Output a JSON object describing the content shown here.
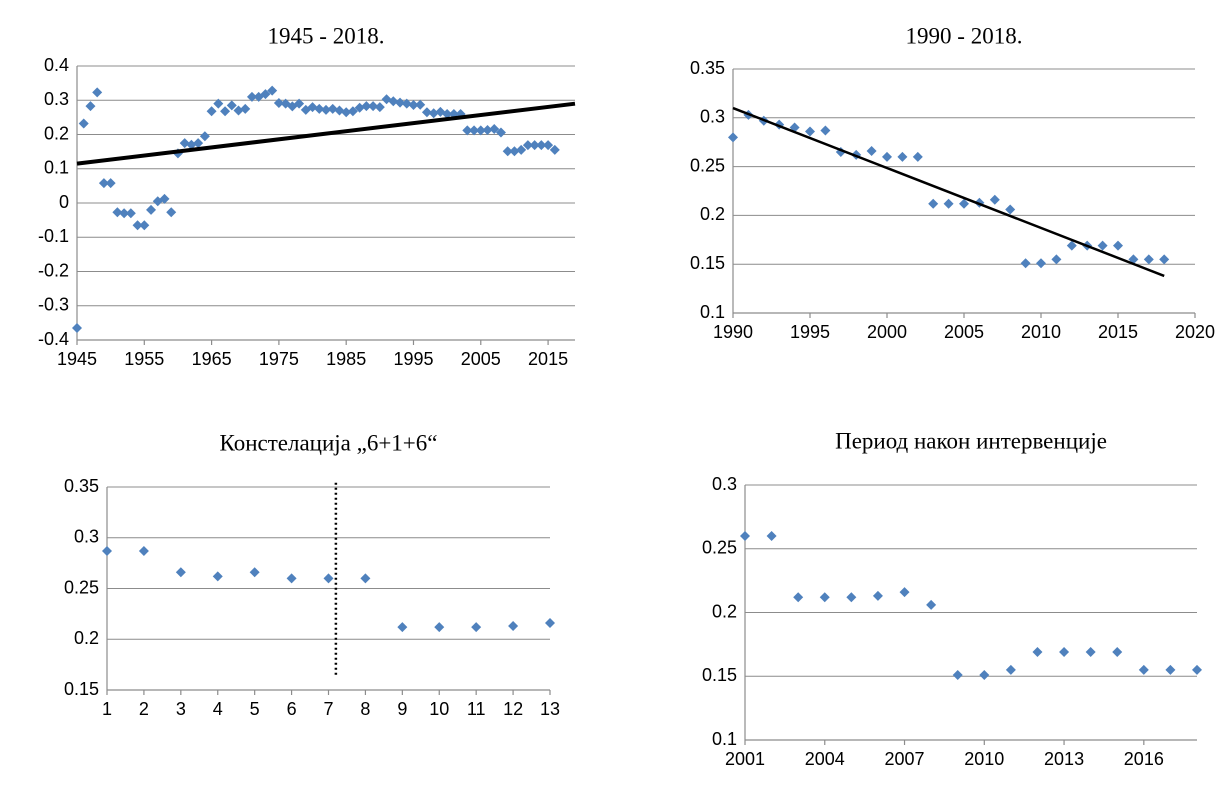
{
  "chart_data": [
    {
      "type": "scatter",
      "title": "1945 - 2018.",
      "x": [
        1945,
        1946,
        1947,
        1948,
        1949,
        1950,
        1951,
        1952,
        1953,
        1954,
        1955,
        1956,
        1957,
        1958,
        1959,
        1960,
        1961,
        1962,
        1963,
        1964,
        1965,
        1966,
        1967,
        1968,
        1969,
        1970,
        1971,
        1972,
        1973,
        1974,
        1975,
        1976,
        1977,
        1978,
        1979,
        1980,
        1981,
        1982,
        1983,
        1984,
        1985,
        1986,
        1987,
        1988,
        1989,
        1990,
        1991,
        1992,
        1993,
        1994,
        1995,
        1996,
        1997,
        1998,
        1999,
        2000,
        2001,
        2002,
        2003,
        2004,
        2005,
        2006,
        2007,
        2008,
        2009,
        2010,
        2011,
        2012,
        2013,
        2014,
        2015,
        2016
      ],
      "values": [
        -0.365,
        0.232,
        0.283,
        0.323,
        0.058,
        0.058,
        -0.027,
        -0.03,
        -0.03,
        -0.065,
        -0.065,
        -0.02,
        0.005,
        0.012,
        -0.027,
        0.145,
        0.175,
        0.17,
        0.175,
        0.195,
        0.268,
        0.29,
        0.268,
        0.285,
        0.27,
        0.275,
        0.31,
        0.31,
        0.318,
        0.328,
        0.292,
        0.29,
        0.282,
        0.29,
        0.272,
        0.28,
        0.275,
        0.272,
        0.275,
        0.27,
        0.265,
        0.268,
        0.278,
        0.283,
        0.283,
        0.28,
        0.303,
        0.297,
        0.293,
        0.29,
        0.286,
        0.287,
        0.265,
        0.262,
        0.266,
        0.26,
        0.26,
        0.26,
        0.212,
        0.212,
        0.212,
        0.213,
        0.216,
        0.206,
        0.151,
        0.151,
        0.155,
        0.169,
        0.169,
        0.169,
        0.169,
        0.155
      ],
      "color": "#4f81bd",
      "xlim": [
        1945,
        2019
      ],
      "xticks": [
        1945,
        1955,
        1965,
        1975,
        1985,
        1995,
        2005,
        2015
      ],
      "ylim": [
        -0.4,
        0.4
      ],
      "yticks": [
        -0.4,
        -0.3,
        -0.2,
        -0.1,
        0,
        0.1,
        0.2,
        0.3,
        0.4
      ],
      "grid": true,
      "trend": {
        "x": [
          1945,
          2019
        ],
        "y": [
          0.115,
          0.29
        ]
      }
    },
    {
      "type": "scatter",
      "title": "1990 - 2018.",
      "x": [
        1990,
        1991,
        1992,
        1993,
        1994,
        1995,
        1996,
        1997,
        1998,
        1999,
        2000,
        2001,
        2002,
        2003,
        2004,
        2005,
        2006,
        2007,
        2008,
        2009,
        2010,
        2011,
        2012,
        2013,
        2014,
        2015,
        2016,
        2017,
        2018
      ],
      "values": [
        0.28,
        0.303,
        0.297,
        0.293,
        0.29,
        0.286,
        0.287,
        0.265,
        0.262,
        0.266,
        0.26,
        0.26,
        0.26,
        0.212,
        0.212,
        0.212,
        0.213,
        0.216,
        0.206,
        0.151,
        0.151,
        0.155,
        0.169,
        0.169,
        0.169,
        0.169,
        0.155,
        0.155,
        0.155
      ],
      "color": "#4f81bd",
      "xlim": [
        1990,
        2020
      ],
      "xticks": [
        1990,
        1995,
        2000,
        2005,
        2010,
        2015,
        2020
      ],
      "ylim": [
        0.1,
        0.35
      ],
      "yticks": [
        0.1,
        0.15,
        0.2,
        0.25,
        0.3,
        0.35
      ],
      "grid": true,
      "trend": {
        "x": [
          1990,
          2018
        ],
        "y": [
          0.31,
          0.138
        ]
      }
    },
    {
      "type": "scatter",
      "title": "Констелација „6+1+6“",
      "x": [
        1,
        2,
        3,
        4,
        5,
        6,
        7,
        8,
        9,
        10,
        11,
        12,
        13
      ],
      "values": [
        0.287,
        0.287,
        0.266,
        0.262,
        0.266,
        0.26,
        0.26,
        0.26,
        0.212,
        0.212,
        0.212,
        0.213,
        0.216
      ],
      "color": "#4f81bd",
      "xlim": [
        1,
        13
      ],
      "xticks": [
        1,
        2,
        3,
        4,
        5,
        6,
        7,
        8,
        9,
        10,
        11,
        12,
        13
      ],
      "ylim": [
        0.15,
        0.35
      ],
      "yticks": [
        0.15,
        0.2,
        0.25,
        0.3,
        0.35
      ],
      "grid": true,
      "divider": {
        "x": 7.2,
        "y": [
          0.165,
          0.355
        ]
      }
    },
    {
      "type": "scatter",
      "title": "Период након интервенције",
      "x": [
        2001,
        2002,
        2003,
        2004,
        2005,
        2006,
        2007,
        2008,
        2009,
        2010,
        2011,
        2012,
        2013,
        2014,
        2015,
        2016,
        2017,
        2018
      ],
      "values": [
        0.26,
        0.26,
        0.212,
        0.212,
        0.212,
        0.213,
        0.216,
        0.206,
        0.151,
        0.151,
        0.155,
        0.169,
        0.169,
        0.169,
        0.169,
        0.155,
        0.155,
        0.155
      ],
      "color": "#4f81bd",
      "xlim": [
        2001,
        2018
      ],
      "xticks": [
        2001,
        2004,
        2007,
        2010,
        2013,
        2016
      ],
      "ylim": [
        0.1,
        0.3
      ],
      "yticks": [
        0.1,
        0.15,
        0.2,
        0.25,
        0.3
      ],
      "grid": true
    }
  ]
}
